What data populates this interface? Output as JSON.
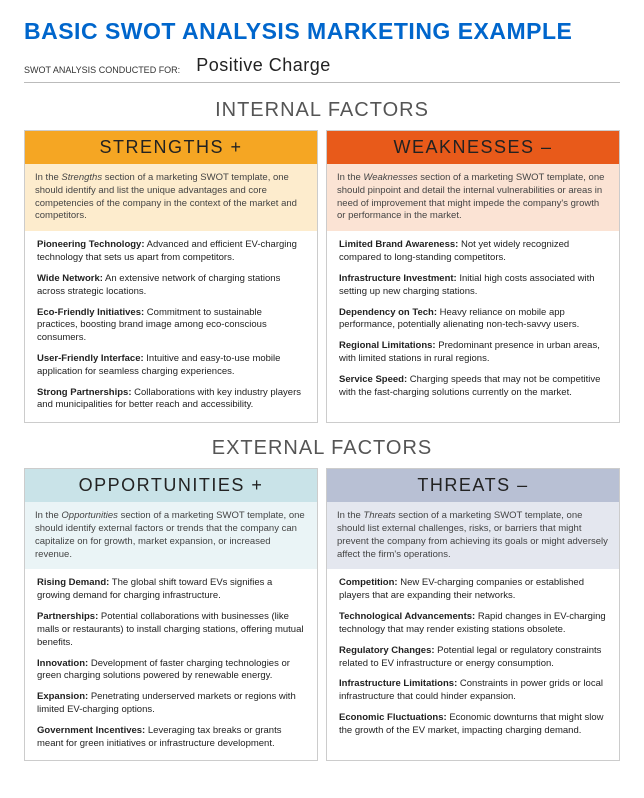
{
  "title": "BASIC SWOT ANALYSIS MARKETING EXAMPLE",
  "subtitle_label": "SWOT ANALYSIS\nCONDUCTED FOR:",
  "subtitle_value": "Positive Charge",
  "sections": {
    "internal": {
      "heading": "INTERNAL FACTORS",
      "strengths": {
        "header": "STRENGTHS  +",
        "header_bg": "#f5a623",
        "desc_bg": "#fdeccd",
        "desc_prefix": "In the ",
        "desc_em": "Strengths",
        "desc_rest": " section of a marketing SWOT template, one should identify and list the unique advantages and core competencies of the company in the context of the market and competitors.",
        "items": [
          {
            "b": "Pioneering Technology:",
            "t": " Advanced and efficient EV-charging technology that sets us apart from competitors."
          },
          {
            "b": "Wide Network:",
            "t": " An extensive network of charging stations across strategic locations."
          },
          {
            "b": "Eco-Friendly Initiatives:",
            "t": " Commitment to sustainable practices, boosting brand image among eco-conscious consumers."
          },
          {
            "b": "User-Friendly Interface:",
            "t": " Intuitive and easy-to-use mobile application for seamless charging experiences."
          },
          {
            "b": "Strong Partnerships:",
            "t": " Collaborations with key industry players and municipalities for better reach and accessibility."
          }
        ]
      },
      "weaknesses": {
        "header": "WEAKNESSES  –",
        "header_bg": "#e85a1a",
        "desc_bg": "#fbe3d4",
        "desc_prefix": "In the ",
        "desc_em": "Weaknesses",
        "desc_rest": " section of a marketing SWOT template, one should pinpoint and detail the internal vulnerabilities or areas in need of improvement that might impede the company's growth or performance in the market.",
        "items": [
          {
            "b": "Limited Brand Awareness:",
            "t": " Not yet widely recognized compared to long-standing competitors."
          },
          {
            "b": "Infrastructure Investment:",
            "t": " Initial high costs associated with setting up new charging stations."
          },
          {
            "b": "Dependency on Tech:",
            "t": " Heavy reliance on mobile app performance, potentially alienating non-tech-savvy users."
          },
          {
            "b": "Regional Limitations:",
            "t": " Predominant presence in urban areas, with limited stations in rural regions."
          },
          {
            "b": "Service Speed:",
            "t": " Charging speeds that may not be competitive with the fast-charging solutions currently on the market."
          }
        ]
      }
    },
    "external": {
      "heading": "EXTERNAL FACTORS",
      "opportunities": {
        "header": "OPPORTUNITIES  +",
        "header_bg": "#c9e3e8",
        "desc_bg": "#eaf4f6",
        "desc_prefix": "In the ",
        "desc_em": "Opportunities",
        "desc_rest": " section of a marketing SWOT template, one should identify external factors or trends that the company can capitalize on for growth, market expansion, or increased revenue.",
        "items": [
          {
            "b": "Rising Demand:",
            "t": " The global shift toward EVs signifies a growing demand for charging infrastructure."
          },
          {
            "b": "Partnerships:",
            "t": " Potential collaborations with businesses (like malls or restaurants) to install charging stations, offering mutual benefits."
          },
          {
            "b": "Innovation:",
            "t": " Development of faster charging technologies or green charging solutions powered by renewable energy."
          },
          {
            "b": "Expansion:",
            "t": " Penetrating underserved markets or regions with limited EV-charging options."
          },
          {
            "b": "Government Incentives:",
            "t": " Leveraging tax breaks or grants meant for green initiatives or infrastructure development."
          }
        ]
      },
      "threats": {
        "header": "THREATS  –",
        "header_bg": "#b8c0d4",
        "desc_bg": "#e4e7ef",
        "desc_prefix": "In the ",
        "desc_em": "Threats",
        "desc_rest": " section of a marketing SWOT template, one should list external challenges, risks, or barriers that might prevent the company from achieving its goals or might adversely affect the firm's operations.",
        "items": [
          {
            "b": "Competition:",
            "t": " New EV-charging companies or established players that are expanding their networks."
          },
          {
            "b": "Technological Advancements:",
            "t": " Rapid changes in EV-charging technology that may render existing stations obsolete."
          },
          {
            "b": "Regulatory Changes:",
            "t": " Potential legal or regulatory constraints related to EV infrastructure or energy consumption."
          },
          {
            "b": "Infrastructure Limitations:",
            "t": " Constraints in power grids or local infrastructure that could hinder expansion."
          },
          {
            "b": "Economic Fluctuations:",
            "t": " Economic downturns that might slow the growth of the EV market, impacting charging demand."
          }
        ]
      }
    }
  }
}
